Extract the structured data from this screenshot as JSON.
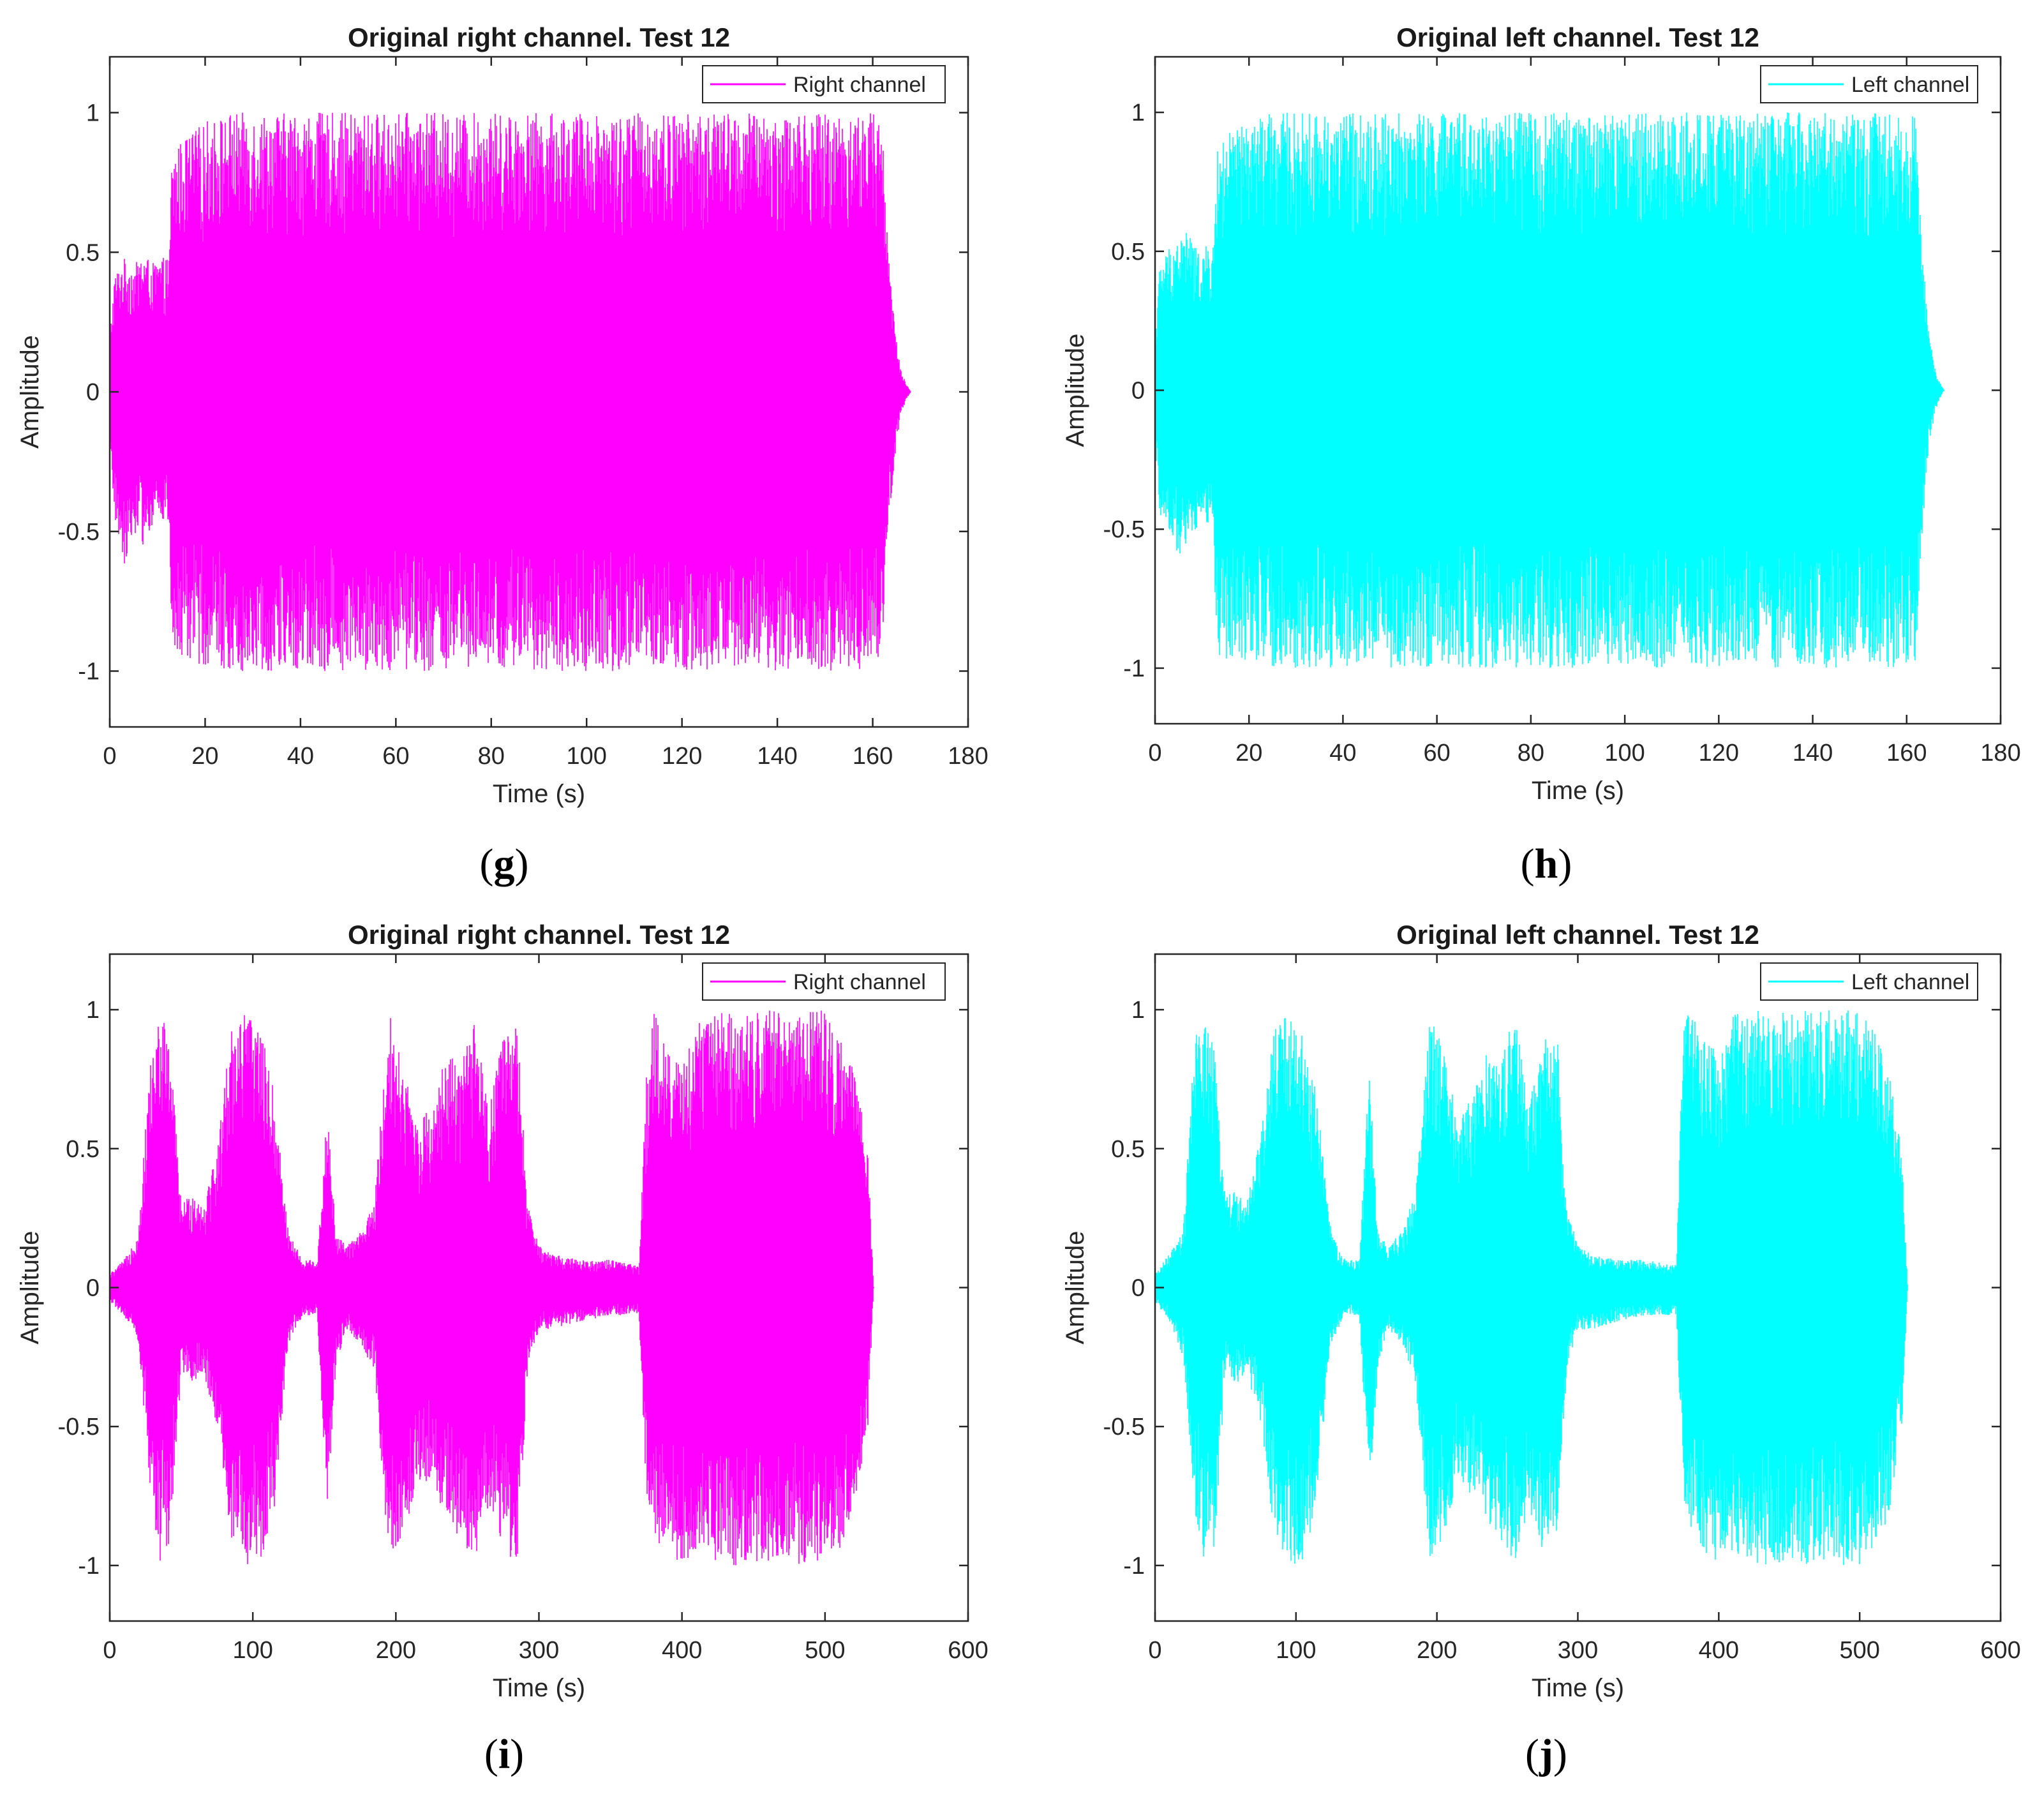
{
  "figure": {
    "panels": [
      {
        "id": "g",
        "caption_open": "(",
        "caption_letter": "g",
        "caption_close": ")",
        "channel": "right"
      },
      {
        "id": "h",
        "caption_open": "(",
        "caption_letter": "h",
        "caption_close": ")",
        "channel": "left"
      },
      {
        "id": "i",
        "caption_open": "(",
        "caption_letter": "i",
        "caption_close": ")",
        "channel": "right"
      },
      {
        "id": "j",
        "caption_open": "(",
        "caption_letter": "j",
        "caption_close": ")",
        "channel": "left"
      }
    ]
  },
  "colors": {
    "right_channel": "#ff00ff",
    "left_channel": "#00ffff",
    "axes": "#262626",
    "background": "#ffffff"
  },
  "chart_data": [
    {
      "panel": "g",
      "type": "line",
      "title": "Original right channel. Test 12",
      "xlabel": "Time (s)",
      "ylabel": "Amplitude",
      "xlim": [
        0,
        180
      ],
      "ylim": [
        -1.2,
        1.2
      ],
      "xticks": [
        0,
        20,
        40,
        60,
        80,
        100,
        120,
        140,
        160,
        180
      ],
      "xtick_labels": [
        "0",
        "20",
        "40",
        "60",
        "80",
        "100",
        "120",
        "140",
        "160",
        "180"
      ],
      "yticks": [
        1,
        0.5,
        0,
        -0.5,
        -1
      ],
      "ytick_labels": [
        "1",
        "0.5",
        "0",
        "-0.5",
        "-1"
      ],
      "legend": {
        "label": "Right channel",
        "position": "top-right"
      },
      "series": [
        {
          "name": "Right channel",
          "color": "#ff00ff",
          "envelope_x": [
            0,
            1,
            3,
            5,
            7,
            9,
            11,
            12.5,
            13,
            15,
            20,
            25,
            30,
            35,
            40,
            41,
            60,
            80,
            81,
            100,
            107,
            108,
            120,
            140,
            160,
            162,
            163,
            164,
            165,
            166,
            167,
            168
          ],
          "envelope_max": [
            0.2,
            0.42,
            0.48,
            0.45,
            0.5,
            0.46,
            0.48,
            0.48,
            0.85,
            0.9,
            0.97,
            1.0,
            1.0,
            1.0,
            1.0,
            1.0,
            1.0,
            1.0,
            1.0,
            1.0,
            1.0,
            1.0,
            1.0,
            1.0,
            1.0,
            1.0,
            0.6,
            0.35,
            0.18,
            0.08,
            0.03,
            0.0
          ],
          "envelope_min": [
            -0.2,
            -0.45,
            -0.62,
            -0.5,
            -0.55,
            -0.48,
            -0.46,
            -0.48,
            -0.96,
            -0.97,
            -0.98,
            -1.0,
            -1.0,
            -1.0,
            -1.0,
            -1.0,
            -1.0,
            -1.0,
            -1.0,
            -1.0,
            -1.0,
            -1.0,
            -1.0,
            -1.0,
            -1.0,
            -1.0,
            -0.6,
            -0.35,
            -0.18,
            -0.08,
            -0.03,
            0.0
          ]
        }
      ]
    },
    {
      "panel": "h",
      "type": "line",
      "title": "Original left channel. Test 12",
      "xlabel": "Time (s)",
      "ylabel": "Amplitude",
      "xlim": [
        0,
        180
      ],
      "ylim": [
        -1.2,
        1.2
      ],
      "xticks": [
        0,
        20,
        40,
        60,
        80,
        100,
        120,
        140,
        160,
        180
      ],
      "xtick_labels": [
        "0",
        "20",
        "40",
        "60",
        "80",
        "100",
        "120",
        "140",
        "160",
        "180"
      ],
      "yticks": [
        1,
        0.5,
        0,
        -0.5,
        -1
      ],
      "ytick_labels": [
        "1",
        "0.5",
        "0",
        "-0.5",
        "-1"
      ],
      "legend": {
        "label": "Left channel",
        "position": "top-right"
      },
      "series": [
        {
          "name": "Left channel",
          "color": "#00ffff",
          "envelope_x": [
            0,
            1,
            3,
            5,
            7,
            9,
            11,
            12.5,
            13,
            15,
            20,
            25,
            30,
            35,
            40,
            41,
            60,
            80,
            81,
            100,
            107,
            108,
            120,
            140,
            160,
            162,
            163,
            164,
            165,
            166,
            167,
            168
          ],
          "envelope_max": [
            0.2,
            0.45,
            0.52,
            0.55,
            0.58,
            0.5,
            0.52,
            0.52,
            0.85,
            0.92,
            0.97,
            1.0,
            1.0,
            1.0,
            1.0,
            1.0,
            1.0,
            1.0,
            1.0,
            1.0,
            1.0,
            1.0,
            1.0,
            1.0,
            1.0,
            1.0,
            0.6,
            0.35,
            0.18,
            0.08,
            0.03,
            0.0
          ],
          "envelope_min": [
            -0.2,
            -0.45,
            -0.5,
            -0.6,
            -0.55,
            -0.5,
            -0.48,
            -0.48,
            -0.96,
            -0.97,
            -0.98,
            -1.0,
            -1.0,
            -1.0,
            -1.0,
            -1.0,
            -1.0,
            -1.0,
            -1.0,
            -1.0,
            -1.0,
            -1.0,
            -1.0,
            -1.0,
            -1.0,
            -1.0,
            -0.6,
            -0.35,
            -0.18,
            -0.08,
            -0.03,
            0.0
          ]
        }
      ]
    },
    {
      "panel": "i",
      "type": "line",
      "title": "Original right channel. Test 12",
      "xlabel": "Time (s)",
      "ylabel": "Amplitude",
      "xlim": [
        0,
        600
      ],
      "ylim": [
        -1.2,
        1.2
      ],
      "xticks": [
        0,
        100,
        200,
        300,
        400,
        500,
        600
      ],
      "xtick_labels": [
        "0",
        "100",
        "200",
        "300",
        "400",
        "500",
        "600"
      ],
      "yticks": [
        1,
        0.5,
        0,
        -0.5,
        -1
      ],
      "ytick_labels": [
        "1",
        "0.5",
        "0",
        "-0.5",
        "-1"
      ],
      "legend": {
        "label": "Right channel",
        "position": "top-right"
      },
      "series": [
        {
          "name": "Right channel",
          "color": "#ff00ff",
          "envelope_x": [
            0,
            10,
            20,
            28,
            35,
            42,
            50,
            58,
            65,
            75,
            85,
            95,
            105,
            115,
            125,
            135,
            145,
            152,
            158,
            165,
            175,
            185,
            195,
            205,
            215,
            225,
            235,
            245,
            255,
            265,
            275,
            285,
            292,
            300,
            310,
            330,
            350,
            370,
            375,
            380,
            390,
            400,
            410,
            420,
            440,
            460,
            480,
            500,
            510,
            520,
            530,
            534
          ],
          "envelope_max": [
            0.05,
            0.1,
            0.2,
            0.8,
            1.0,
            0.9,
            0.3,
            0.35,
            0.3,
            0.5,
            0.95,
            1.0,
            0.95,
            0.7,
            0.2,
            0.1,
            0.1,
            0.65,
            0.2,
            0.15,
            0.2,
            0.3,
            1.0,
            0.8,
            0.6,
            0.65,
            0.85,
            0.8,
            0.95,
            0.65,
            0.9,
            0.95,
            0.3,
            0.15,
            0.12,
            0.1,
            0.1,
            0.08,
            0.75,
            1.0,
            0.85,
            0.8,
            0.95,
            1.0,
            1.0,
            1.0,
            1.0,
            1.0,
            0.9,
            0.8,
            0.5,
            0.0
          ],
          "envelope_min": [
            -0.05,
            -0.1,
            -0.2,
            -0.7,
            -1.0,
            -0.95,
            -0.3,
            -0.35,
            -0.3,
            -0.5,
            -0.9,
            -1.0,
            -1.0,
            -0.8,
            -0.2,
            -0.1,
            -0.1,
            -0.8,
            -0.3,
            -0.15,
            -0.2,
            -0.3,
            -1.0,
            -0.9,
            -0.7,
            -0.7,
            -0.85,
            -0.9,
            -1.0,
            -0.8,
            -0.95,
            -1.0,
            -0.3,
            -0.15,
            -0.15,
            -0.12,
            -0.1,
            -0.1,
            -0.75,
            -0.9,
            -0.95,
            -1.0,
            -0.95,
            -1.0,
            -1.0,
            -1.0,
            -1.0,
            -1.0,
            -0.95,
            -0.8,
            -0.5,
            0.0
          ]
        }
      ]
    },
    {
      "panel": "j",
      "type": "line",
      "title": "Original left channel. Test 12",
      "xlabel": "Time (s)",
      "ylabel": "Amplitude",
      "xlim": [
        0,
        600
      ],
      "ylim": [
        -1.2,
        1.2
      ],
      "xticks": [
        0,
        100,
        200,
        300,
        400,
        500,
        600
      ],
      "xtick_labels": [
        "0",
        "100",
        "200",
        "300",
        "400",
        "500",
        "600"
      ],
      "yticks": [
        1,
        0.5,
        0,
        -0.5,
        -1
      ],
      "ytick_labels": [
        "1",
        "0.5",
        "0",
        "-0.5",
        "-1"
      ],
      "legend": {
        "label": "Left channel",
        "position": "top-right"
      },
      "series": [
        {
          "name": "Left channel",
          "color": "#00ffff",
          "envelope_x": [
            0,
            10,
            20,
            28,
            35,
            42,
            50,
            58,
            65,
            75,
            85,
            95,
            105,
            115,
            125,
            135,
            145,
            152,
            158,
            165,
            175,
            185,
            195,
            205,
            215,
            225,
            235,
            245,
            255,
            265,
            275,
            285,
            292,
            300,
            310,
            330,
            350,
            370,
            375,
            380,
            390,
            400,
            410,
            420,
            440,
            460,
            480,
            500,
            510,
            520,
            530,
            534
          ],
          "envelope_max": [
            0.05,
            0.12,
            0.2,
            0.9,
            1.0,
            0.85,
            0.35,
            0.35,
            0.3,
            0.55,
            0.95,
            1.0,
            0.9,
            0.7,
            0.2,
            0.1,
            0.1,
            0.8,
            0.2,
            0.15,
            0.2,
            0.35,
            1.0,
            0.85,
            0.6,
            0.7,
            0.85,
            0.8,
            1.0,
            0.65,
            0.9,
            0.95,
            0.3,
            0.15,
            0.12,
            0.1,
            0.1,
            0.08,
            1.0,
            1.0,
            0.9,
            0.85,
            1.0,
            1.0,
            1.0,
            1.0,
            1.0,
            1.0,
            0.95,
            0.8,
            0.5,
            0.0
          ],
          "envelope_min": [
            -0.05,
            -0.12,
            -0.25,
            -0.8,
            -1.0,
            -0.95,
            -0.3,
            -0.35,
            -0.3,
            -0.5,
            -0.9,
            -1.0,
            -1.0,
            -0.8,
            -0.2,
            -0.1,
            -0.1,
            -0.75,
            -0.3,
            -0.15,
            -0.2,
            -0.35,
            -1.0,
            -0.9,
            -0.7,
            -0.75,
            -0.85,
            -0.9,
            -1.0,
            -0.8,
            -0.95,
            -1.0,
            -0.3,
            -0.15,
            -0.15,
            -0.12,
            -0.1,
            -0.1,
            -0.75,
            -0.9,
            -0.95,
            -1.0,
            -0.95,
            -1.0,
            -1.0,
            -1.0,
            -1.0,
            -1.0,
            -0.95,
            -0.85,
            -0.5,
            0.0
          ]
        }
      ]
    }
  ]
}
